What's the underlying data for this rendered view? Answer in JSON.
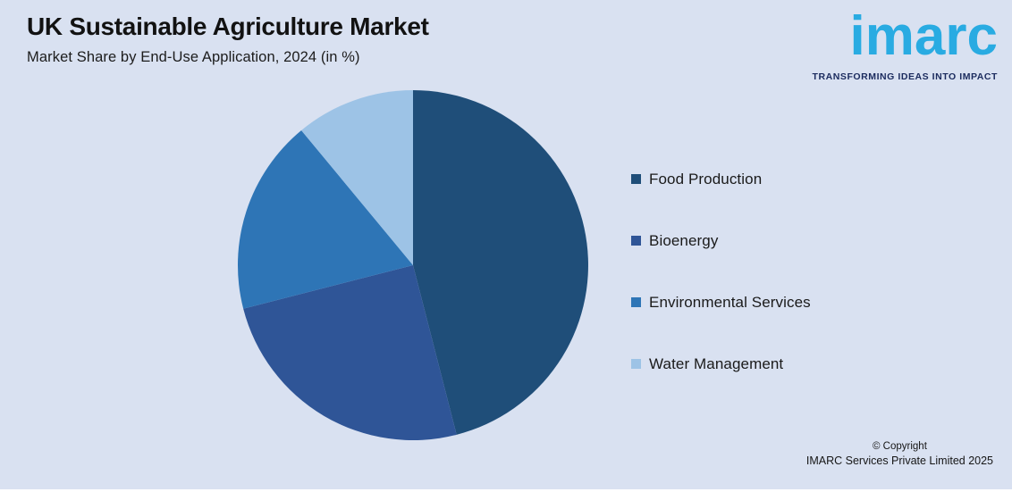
{
  "header": {
    "title": "UK Sustainable Agriculture Market",
    "subtitle": "Market Share by End-Use Application, 2024 (in %)"
  },
  "logo": {
    "wordmark": "imarc",
    "tagline": "TRANSFORMING IDEAS INTO IMPACT",
    "wordmark_color": "#29ABE2",
    "tagline_color": "#1B2B5E"
  },
  "chart_data": {
    "type": "pie",
    "title": "UK Sustainable Agriculture Market",
    "subtitle": "Market Share by End-Use Application, 2024 (in %)",
    "unit": "%",
    "year": "2024",
    "start_angle_deg": 0,
    "direction": "clockwise",
    "legend_position": "right",
    "values_labeled_on_chart": false,
    "segments": [
      {
        "label": "Food Production",
        "value": 46,
        "color": "#1F4E79"
      },
      {
        "label": "Bioenergy",
        "value": 25,
        "color": "#2F5597"
      },
      {
        "label": "Environmental Services",
        "value": 18,
        "color": "#2E75B6"
      },
      {
        "label": "Water Management",
        "value": 11,
        "color": "#9DC3E6"
      }
    ]
  },
  "footer": {
    "line1": "© Copyright",
    "line2": "IMARC Services Private Limited 2025"
  },
  "colors": {
    "background": "#D9E1F1"
  }
}
